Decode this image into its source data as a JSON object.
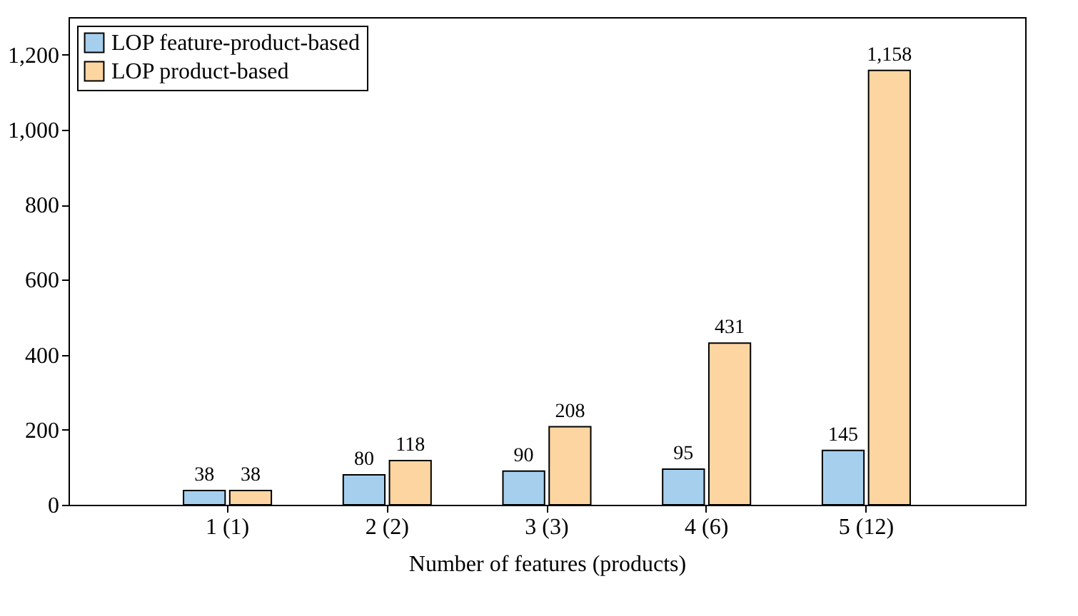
{
  "chart_data": {
    "type": "bar",
    "xlabel": "Number of features (products)",
    "categories": [
      "1 (1)",
      "2 (2)",
      "3 (3)",
      "4 (6)",
      "5 (12)"
    ],
    "series": [
      {
        "name": "LOP feature-product-based",
        "color": "#a6cfee",
        "values": [
          38,
          80,
          90,
          95,
          145
        ],
        "value_labels": [
          "38",
          "80",
          "90",
          "95",
          "145"
        ]
      },
      {
        "name": "LOP product-based",
        "color": "#fdd5a0",
        "values": [
          38,
          118,
          208,
          431,
          1158
        ],
        "value_labels": [
          "38",
          "118",
          "208",
          "431",
          "1,158"
        ]
      }
    ],
    "ylim": [
      0,
      1300
    ],
    "yticks": [
      0,
      200,
      400,
      600,
      800,
      {
        "value": 1000,
        "label": "1,000"
      },
      {
        "value": 1200,
        "label": "1,200"
      }
    ],
    "legend": "top left",
    "grid": false
  }
}
